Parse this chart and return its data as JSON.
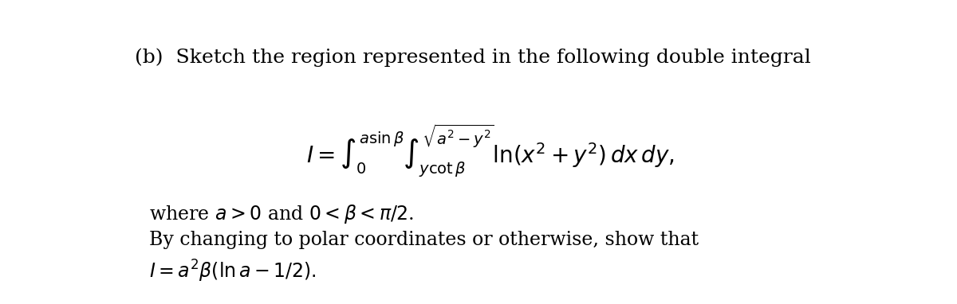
{
  "bg_color": "#ffffff",
  "text_color": "#000000",
  "fig_width": 12.0,
  "fig_height": 3.82,
  "title_text": "(b)  Sketch the region represented in the following double integral",
  "line3": "where $a > 0$ and $0 < \\beta < \\pi/2$.",
  "line4": "By changing to polar coordinates or otherwise, show that",
  "line5": "$I = a^2\\beta(\\ln a - 1/2).$",
  "title_fontsize": 18,
  "body_fontsize": 17,
  "math_fontsize": 20
}
